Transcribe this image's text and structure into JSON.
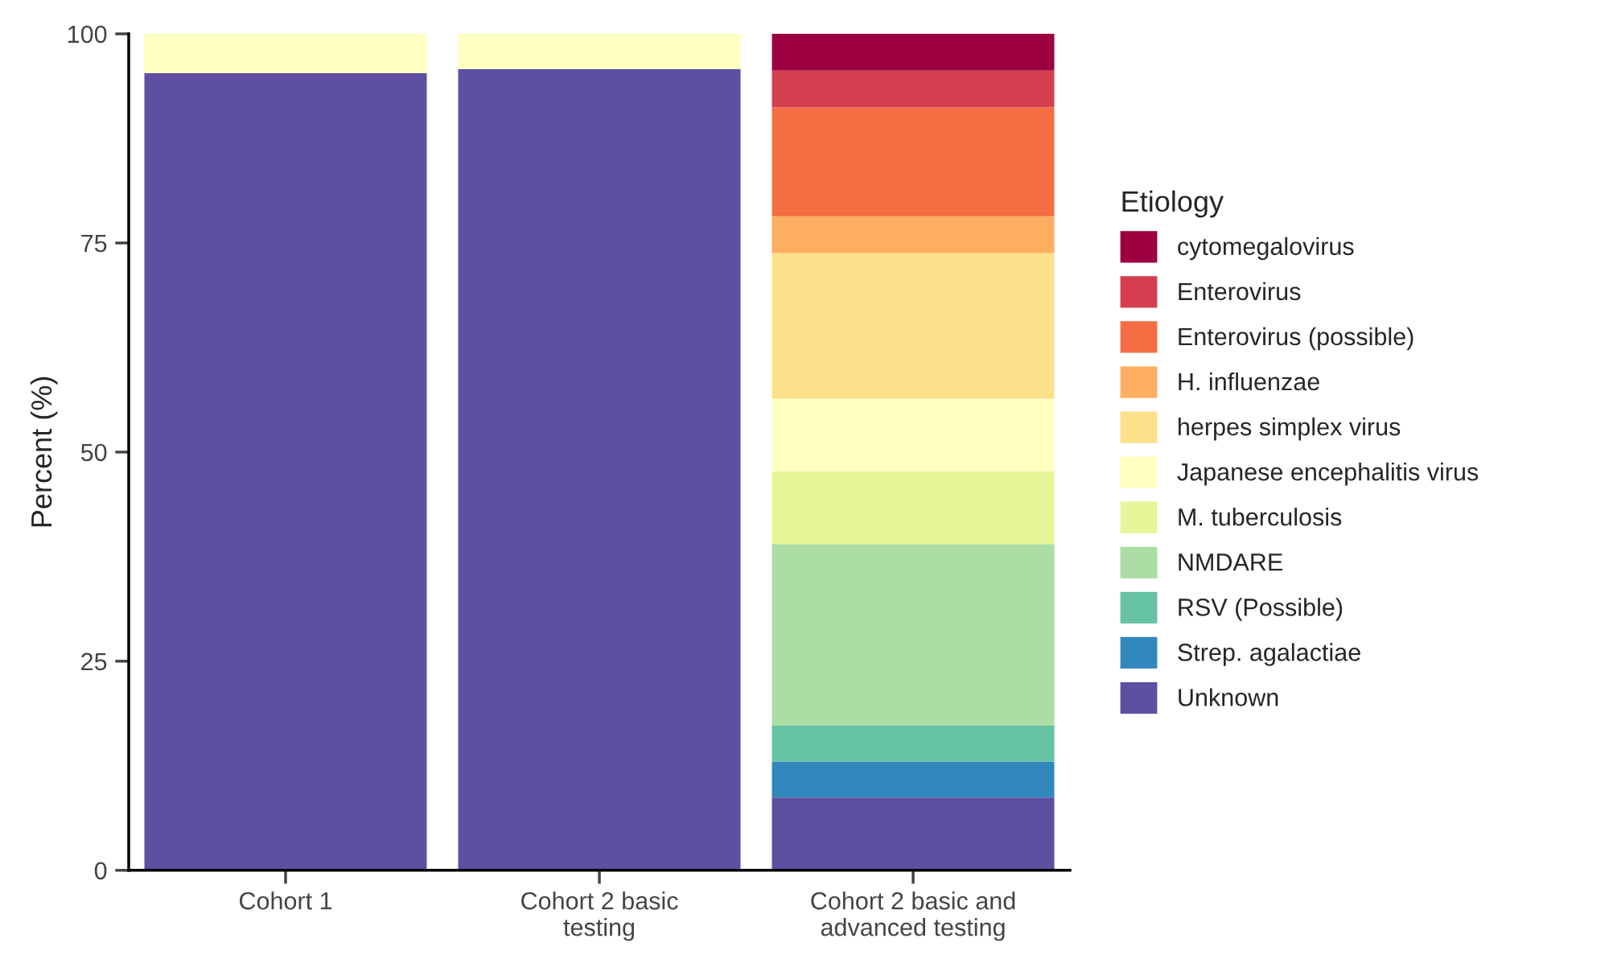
{
  "chart_data": {
    "type": "bar",
    "stacked": true,
    "ylabel": "Percent (%)",
    "legend_title": "Etiology",
    "legend": "right",
    "grid": false,
    "categories": [
      "Cohort 1",
      "Cohort 2 basic\ntesting",
      "Cohort 2 basic and\nadvanced testing"
    ],
    "ylim": [
      0,
      100
    ],
    "yticks": [
      0,
      25,
      50,
      75,
      100
    ],
    "series": [
      {
        "name": "Unknown",
        "color": "#5e4fa2",
        "values": [
          95.3,
          95.8,
          8.7
        ]
      },
      {
        "name": "Strep. agalactiae",
        "color": "#3288bd",
        "values": [
          null,
          null,
          4.3
        ]
      },
      {
        "name": "RSV (Possible)",
        "color": "#66c2a5",
        "values": [
          null,
          null,
          4.3
        ]
      },
      {
        "name": "NMDARE",
        "color": "#abdda4",
        "values": [
          null,
          null,
          21.7
        ]
      },
      {
        "name": "M. tuberculosis",
        "color": "#e6f598",
        "values": [
          null,
          null,
          8.7
        ]
      },
      {
        "name": "Japanese encephalitis virus",
        "color": "#ffffbf",
        "values": [
          4.7,
          4.2,
          8.7
        ]
      },
      {
        "name": "herpes simplex virus",
        "color": "#fee08b",
        "values": [
          null,
          null,
          17.4
        ]
      },
      {
        "name": "H. influenzae",
        "color": "#fdae61",
        "values": [
          null,
          null,
          4.4
        ]
      },
      {
        "name": "Enterovirus (possible)",
        "color": "#f46d43",
        "values": [
          null,
          null,
          13.0
        ]
      },
      {
        "name": "Enterovirus",
        "color": "#d53e4f",
        "values": [
          null,
          null,
          4.4
        ]
      },
      {
        "name": "cytomegalovirus",
        "color": "#9e0142",
        "values": [
          null,
          null,
          4.4
        ]
      }
    ]
  }
}
